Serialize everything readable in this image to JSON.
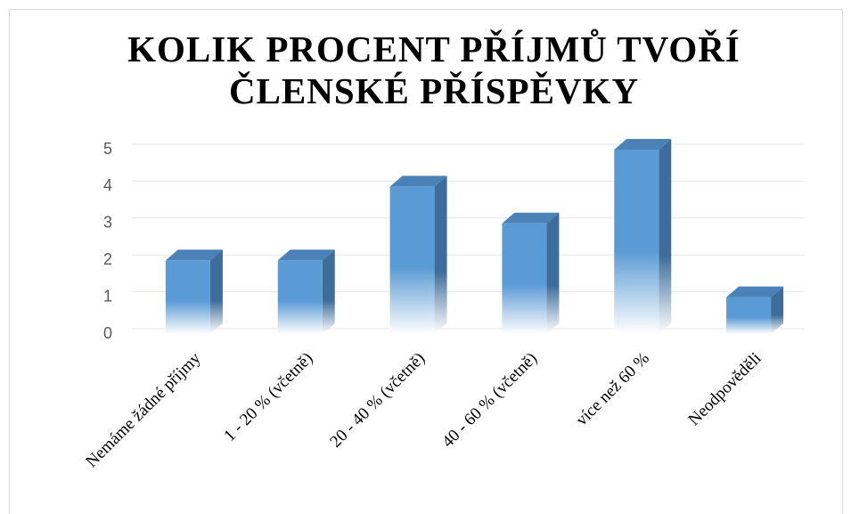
{
  "chart_data": {
    "type": "bar",
    "title": "KOLIK PROCENT PŘÍJMŮ TVOŘÍ ČLENSKÉ PŘÍSPĚVKY",
    "categories": [
      "Nemáme žádné příjmy",
      "1 - 20 % (včetně)",
      "20 - 40 % (včetně)",
      "40 - 60 % (včetně)",
      "více než 60 %",
      "Neodpověděli"
    ],
    "values": [
      2,
      2,
      4,
      3,
      5,
      1
    ],
    "color": "#5b9bd5",
    "ylim": [
      0,
      5
    ],
    "yticks": [
      0,
      1,
      2,
      3,
      4,
      5
    ],
    "grid": true
  }
}
